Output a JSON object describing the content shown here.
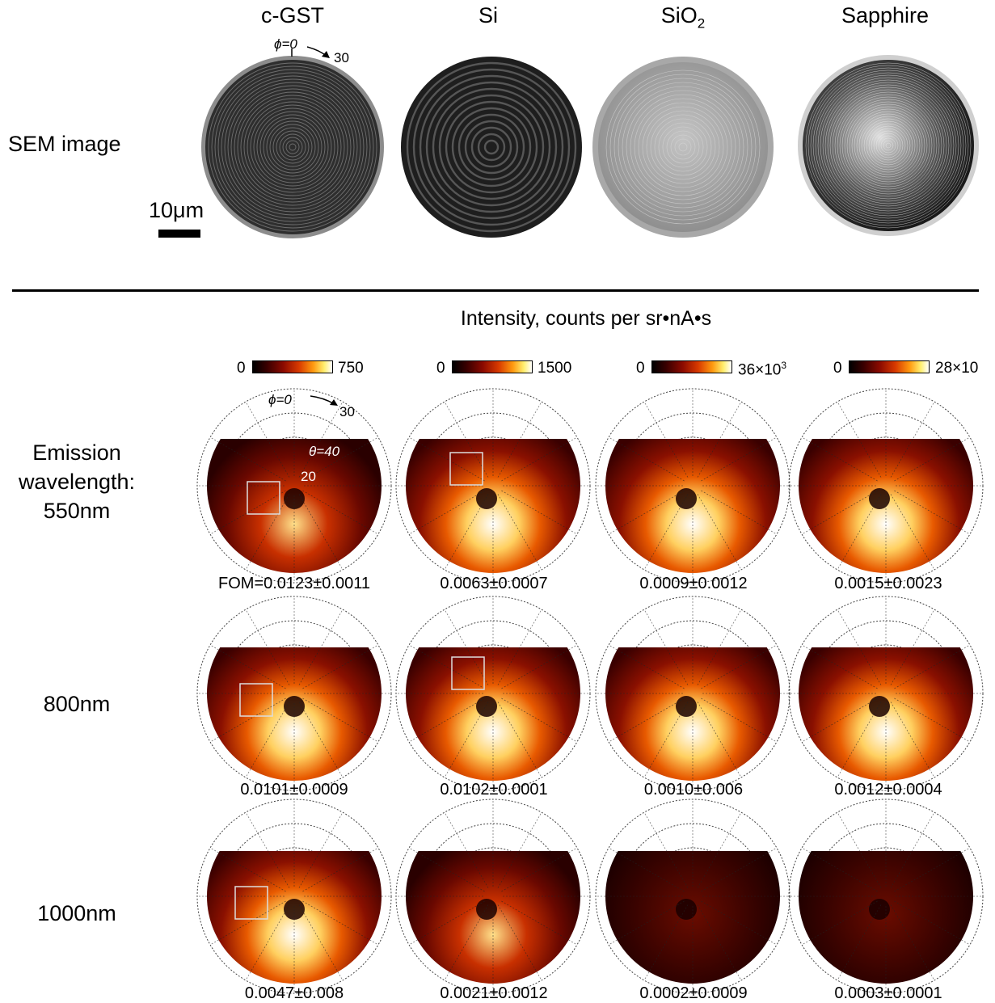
{
  "columns": [
    {
      "title": "c-GST"
    },
    {
      "title": "Si"
    },
    {
      "title": "SiO",
      "sub": "2"
    },
    {
      "title": "Sapphire"
    }
  ],
  "sem": {
    "row_label": "SEM image",
    "scale_label": "10μm",
    "phi_label": "ϕ=0",
    "phi_end": "30"
  },
  "intensity_title": "Intensity, counts per sr•nA•s",
  "colorbars": [
    {
      "min": "0",
      "max": "750"
    },
    {
      "min": "0",
      "max": "1500"
    },
    {
      "min": "0",
      "max": "36×10",
      "sup": "3"
    },
    {
      "min": "0",
      "max": "28×10"
    }
  ],
  "polar_annotations": {
    "phi_label": "ϕ=0",
    "phi_end": "30",
    "theta_label": "θ=40",
    "theta_inner": "20"
  },
  "rows": [
    {
      "label_lines": [
        "Emission",
        "wavelength:",
        "550nm"
      ],
      "fom": [
        "FOM=0.0123±0.0011",
        "0.0063±0.0007",
        "0.0009±0.0012",
        "0.0015±0.0023"
      ]
    },
    {
      "label_lines": [
        "800nm"
      ],
      "fom": [
        "0.0101±0.0009",
        "0.0102±0.0001",
        "0.0010±0.006",
        "0.0012±0.0004"
      ]
    },
    {
      "label_lines": [
        "1000nm"
      ],
      "fom": [
        "0.0047±0.008",
        "0.0021±0.0012",
        "0.0002±0.0009",
        "0.0003±0.0001"
      ]
    }
  ],
  "colors": {
    "heat_low": "#3a0000",
    "heat_mid": "#b82000",
    "heat_high": "#ffffff",
    "box": "#dddddd",
    "grid": "#444444"
  }
}
